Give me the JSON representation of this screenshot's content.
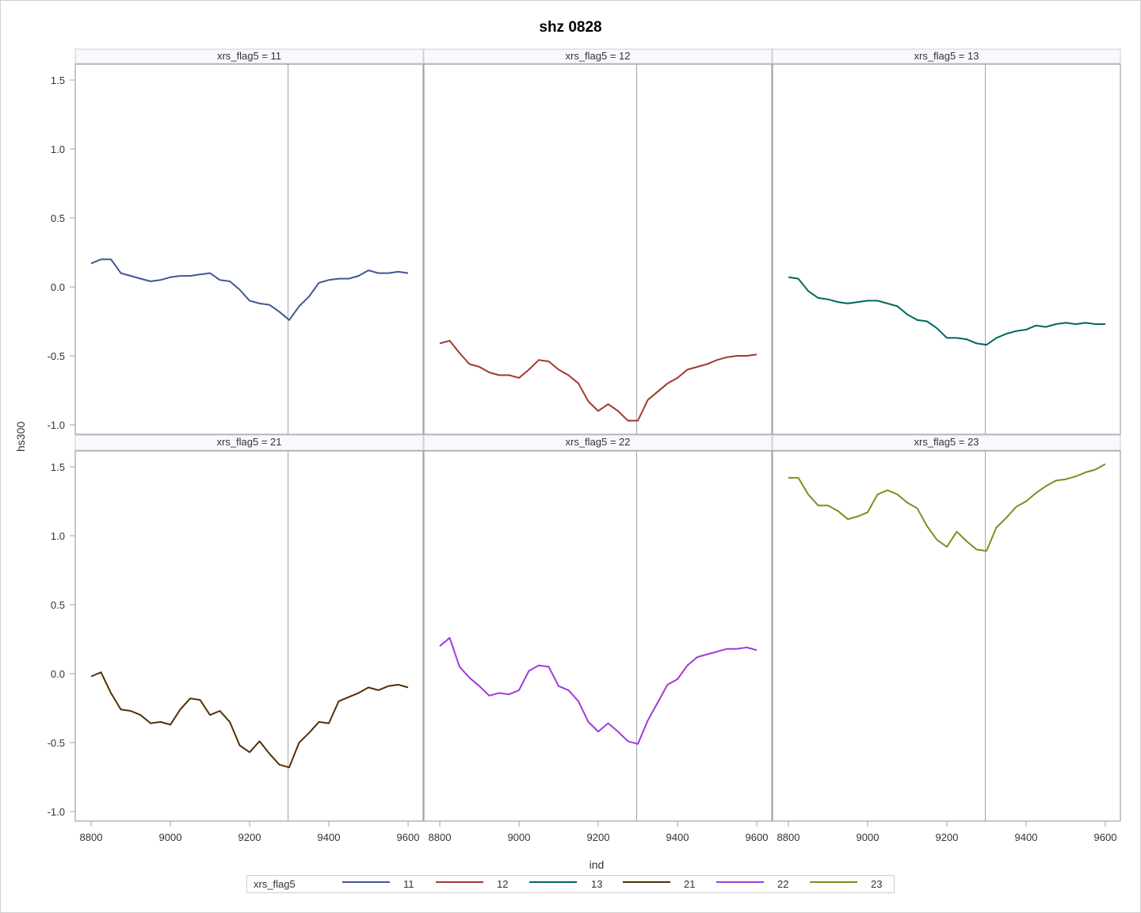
{
  "title": "shz 0828",
  "xlabel": "ind",
  "ylabel": "hs300",
  "legend": {
    "title": "xrs_flag5",
    "items": [
      {
        "label": "11",
        "color": "#445694"
      },
      {
        "label": "12",
        "color": "#A23A2E"
      },
      {
        "label": "13",
        "color": "#01665E"
      },
      {
        "label": "21",
        "color": "#543005"
      },
      {
        "label": "22",
        "color": "#9D3CDB"
      },
      {
        "label": "23",
        "color": "#7F8E1F"
      }
    ]
  },
  "chart_data": {
    "type": "line",
    "title": "shz 0828",
    "xlabel": "ind",
    "ylabel": "hs300",
    "layout": "panel 2x3 by xrs_flag5",
    "xlim": [
      8785,
      9625
    ],
    "ylim": [
      -1.07,
      1.62
    ],
    "xticks": [
      8800,
      9000,
      9200,
      9400,
      9600
    ],
    "yticks": [
      -1.0,
      -0.5,
      0.0,
      0.5,
      1.0,
      1.5
    ],
    "reference_line_x": 9297,
    "grid": false,
    "legend_position": "bottom",
    "x": [
      8800,
      8825,
      8850,
      8875,
      8900,
      8925,
      8950,
      8975,
      9000,
      9025,
      9050,
      9075,
      9100,
      9125,
      9150,
      9175,
      9200,
      9225,
      9250,
      9275,
      9300,
      9325,
      9350,
      9375,
      9400,
      9425,
      9450,
      9475,
      9500,
      9525,
      9550,
      9575,
      9600
    ],
    "series": [
      {
        "name": "xrs_flag5 = 11",
        "color": "#445694",
        "values": [
          0.17,
          0.2,
          0.2,
          0.1,
          0.08,
          0.06,
          0.04,
          0.05,
          0.07,
          0.08,
          0.08,
          0.09,
          0.1,
          0.05,
          0.04,
          -0.02,
          -0.1,
          -0.12,
          -0.13,
          -0.18,
          -0.24,
          -0.14,
          -0.07,
          0.03,
          0.05,
          0.06,
          0.06,
          0.08,
          0.12,
          0.1,
          0.1,
          0.11,
          0.1
        ]
      },
      {
        "name": "xrs_flag5 = 12",
        "color": "#A23A2E",
        "values": [
          -0.41,
          -0.39,
          -0.48,
          -0.56,
          -0.58,
          -0.62,
          -0.64,
          -0.64,
          -0.66,
          -0.6,
          -0.53,
          -0.54,
          -0.6,
          -0.64,
          -0.7,
          -0.83,
          -0.9,
          -0.85,
          -0.9,
          -0.97,
          -0.97,
          -0.82,
          -0.76,
          -0.7,
          -0.66,
          -0.6,
          -0.58,
          -0.56,
          -0.53,
          -0.51,
          -0.5,
          -0.5,
          -0.49
        ]
      },
      {
        "name": "xrs_flag5 = 13",
        "color": "#01665E",
        "values": [
          0.07,
          0.06,
          -0.03,
          -0.08,
          -0.09,
          -0.11,
          -0.12,
          -0.11,
          -0.1,
          -0.1,
          -0.12,
          -0.14,
          -0.2,
          -0.24,
          -0.25,
          -0.3,
          -0.37,
          -0.37,
          -0.38,
          -0.41,
          -0.42,
          -0.37,
          -0.34,
          -0.32,
          -0.31,
          -0.28,
          -0.29,
          -0.27,
          -0.26,
          -0.27,
          -0.26,
          -0.27,
          -0.27
        ]
      },
      {
        "name": "xrs_flag5 = 21",
        "color": "#543005",
        "values": [
          -0.02,
          0.01,
          -0.14,
          -0.26,
          -0.27,
          -0.3,
          -0.36,
          -0.35,
          -0.37,
          -0.26,
          -0.18,
          -0.19,
          -0.3,
          -0.27,
          -0.35,
          -0.52,
          -0.57,
          -0.49,
          -0.58,
          -0.66,
          -0.68,
          -0.5,
          -0.43,
          -0.35,
          -0.36,
          -0.2,
          -0.17,
          -0.14,
          -0.1,
          -0.12,
          -0.09,
          -0.08,
          -0.1
        ]
      },
      {
        "name": "xrs_flag5 = 22",
        "color": "#9D3CDB",
        "values": [
          0.2,
          0.26,
          0.05,
          -0.03,
          -0.09,
          -0.16,
          -0.14,
          -0.15,
          -0.12,
          0.02,
          0.06,
          0.05,
          -0.09,
          -0.12,
          -0.2,
          -0.35,
          -0.42,
          -0.36,
          -0.42,
          -0.49,
          -0.51,
          -0.34,
          -0.21,
          -0.08,
          -0.04,
          0.06,
          0.12,
          0.14,
          0.16,
          0.18,
          0.18,
          0.19,
          0.17
        ]
      },
      {
        "name": "xrs_flag5 = 23",
        "color": "#7F8E1F",
        "values": [
          1.42,
          1.42,
          1.3,
          1.22,
          1.22,
          1.18,
          1.12,
          1.14,
          1.17,
          1.3,
          1.33,
          1.3,
          1.24,
          1.2,
          1.07,
          0.97,
          0.92,
          1.03,
          0.96,
          0.9,
          0.89,
          1.06,
          1.13,
          1.21,
          1.25,
          1.31,
          1.36,
          1.4,
          1.41,
          1.43,
          1.46,
          1.48,
          1.52
        ]
      }
    ]
  }
}
